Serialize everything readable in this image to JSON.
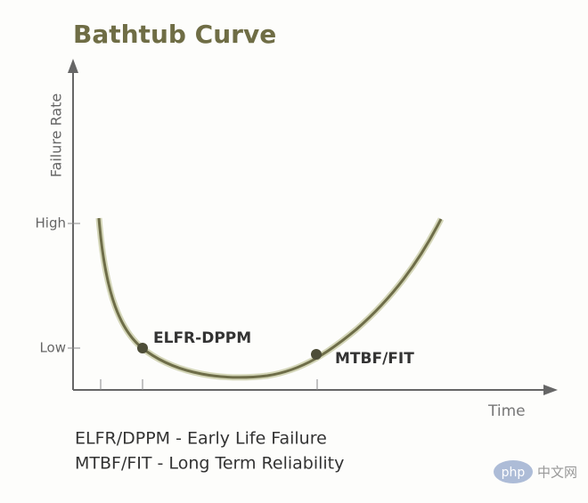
{
  "title": "Bathtub Curve",
  "y_axis": {
    "label": "Failure Rate",
    "ticks": [
      "High",
      "Low"
    ]
  },
  "x_axis": {
    "label": "Time"
  },
  "points": [
    {
      "label": "ELFR-DPPM"
    },
    {
      "label": "MTBF/FIT"
    }
  ],
  "legend": [
    "ELFR/DPPM - Early  Life Failure",
    "MTBF/FIT - Long Term Reliability"
  ],
  "watermark": {
    "logo": "php",
    "text": "中文网"
  }
}
